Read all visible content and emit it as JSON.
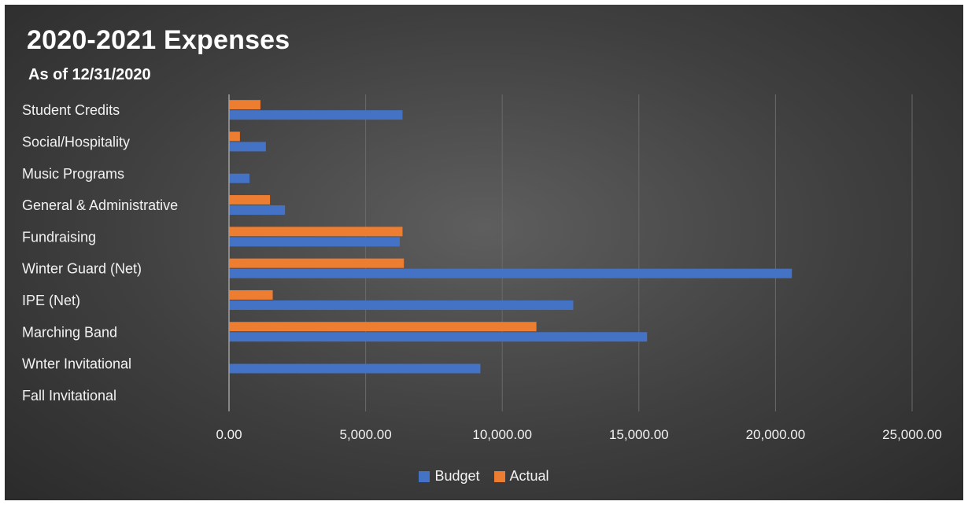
{
  "chart_data": {
    "type": "bar",
    "orientation": "horizontal",
    "title": "2020-2021 Expenses",
    "subtitle": "As of 12/31/2020",
    "categories": [
      "Student Credits",
      "Social/Hospitality",
      "Music Programs",
      "General & Administrative",
      "Fundraising",
      "Winter Guard (Net)",
      "IPE (Net)",
      "Marching Band",
      "Wnter Invitational",
      "Fall Invitational"
    ],
    "series": [
      {
        "name": "Actual",
        "color": "#ed7d31",
        "values": [
          1150,
          400,
          0,
          1500,
          6350,
          6400,
          1600,
          11250,
          0,
          0
        ]
      },
      {
        "name": "Budget",
        "color": "#4472c4",
        "values": [
          6350,
          1350,
          750,
          2050,
          6250,
          20600,
          12600,
          15300,
          9200,
          0
        ]
      }
    ],
    "xlim": [
      0,
      25000
    ],
    "xticks": [
      0,
      5000,
      10000,
      15000,
      20000,
      25000
    ],
    "xtick_labels": [
      "0.00",
      "5,000.00",
      "10,000.00",
      "15,000.00",
      "20,000.00",
      "25,000.00"
    ],
    "grid": true,
    "legend_position": "bottom",
    "legend_order": [
      "Budget",
      "Actual"
    ]
  }
}
